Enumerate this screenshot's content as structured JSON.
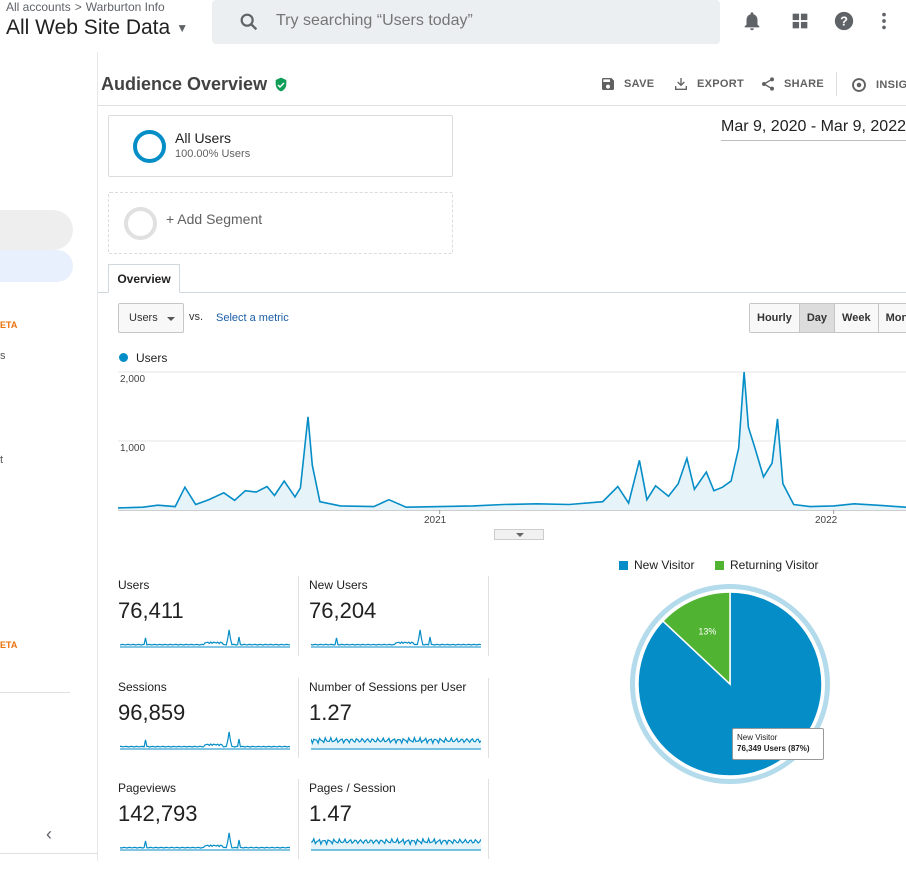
{
  "topbar": {
    "breadcrumb": [
      "All accounts",
      "Warburton Info"
    ],
    "breadcrumb_sep": ">",
    "property": "All Web Site Data",
    "search_placeholder": "Try searching “Users today”",
    "icons": [
      "bell-icon",
      "apps-grid-icon",
      "help-icon",
      "more-vert-icon"
    ]
  },
  "sidebar": {
    "beta1": "ETA",
    "frag1": "s",
    "frag2": "t",
    "beta2": "ETA"
  },
  "header": {
    "title": "Audience Overview",
    "actions": {
      "save": "SAVE",
      "export": "EXPORT",
      "share": "SHARE",
      "insights": "INSIGHTS"
    }
  },
  "segments": {
    "all_users": "All Users",
    "all_users_sub": "100.00% Users",
    "add_segment": "+ Add Segment"
  },
  "date_range": "Mar 9, 2020 - Mar 9, 2022",
  "tabs": {
    "overview": "Overview"
  },
  "controls": {
    "metric": "Users",
    "vs": "vs.",
    "select_metric": "Select a metric",
    "granularity": [
      "Hourly",
      "Day",
      "Week",
      "Month"
    ],
    "active_granularity": "Day"
  },
  "chart_data": {
    "type": "area",
    "series": [
      {
        "name": "Users",
        "color": "#058dc7"
      }
    ],
    "x_tick_labels": [
      "2021",
      "2022"
    ],
    "y_tick_labels": [
      "2,000",
      "1,000"
    ],
    "ylim": [
      0,
      2000
    ],
    "xlim": [
      "2020-03-09",
      "2022-03-09"
    ],
    "points": [
      [
        "2020-03-09",
        30
      ],
      [
        "2020-04-01",
        40
      ],
      [
        "2020-04-15",
        70
      ],
      [
        "2020-05-01",
        50
      ],
      [
        "2020-05-10",
        330
      ],
      [
        "2020-05-20",
        80
      ],
      [
        "2020-06-01",
        150
      ],
      [
        "2020-06-15",
        250
      ],
      [
        "2020-06-25",
        140
      ],
      [
        "2020-07-05",
        280
      ],
      [
        "2020-07-15",
        260
      ],
      [
        "2020-07-25",
        340
      ],
      [
        "2020-08-01",
        210
      ],
      [
        "2020-08-10",
        420
      ],
      [
        "2020-08-20",
        190
      ],
      [
        "2020-08-25",
        320
      ],
      [
        "2020-09-01",
        1350
      ],
      [
        "2020-09-05",
        650
      ],
      [
        "2020-09-12",
        120
      ],
      [
        "2020-10-01",
        60
      ],
      [
        "2020-11-01",
        50
      ],
      [
        "2020-11-15",
        150
      ],
      [
        "2020-12-01",
        40
      ],
      [
        "2021-01-01",
        50
      ],
      [
        "2021-02-01",
        60
      ],
      [
        "2021-03-01",
        80
      ],
      [
        "2021-04-01",
        90
      ],
      [
        "2021-05-01",
        80
      ],
      [
        "2021-06-01",
        120
      ],
      [
        "2021-06-15",
        340
      ],
      [
        "2021-06-25",
        100
      ],
      [
        "2021-07-05",
        720
      ],
      [
        "2021-07-12",
        150
      ],
      [
        "2021-07-20",
        350
      ],
      [
        "2021-08-01",
        200
      ],
      [
        "2021-08-10",
        380
      ],
      [
        "2021-08-18",
        750
      ],
      [
        "2021-08-25",
        300
      ],
      [
        "2021-09-05",
        550
      ],
      [
        "2021-09-12",
        280
      ],
      [
        "2021-09-20",
        330
      ],
      [
        "2021-09-28",
        420
      ],
      [
        "2021-10-05",
        900
      ],
      [
        "2021-10-10",
        2000
      ],
      [
        "2021-10-14",
        1200
      ],
      [
        "2021-10-20",
        900
      ],
      [
        "2021-10-28",
        480
      ],
      [
        "2021-11-05",
        680
      ],
      [
        "2021-11-10",
        1320
      ],
      [
        "2021-11-15",
        380
      ],
      [
        "2021-11-25",
        80
      ],
      [
        "2021-12-10",
        50
      ],
      [
        "2022-01-01",
        60
      ],
      [
        "2022-01-20",
        90
      ],
      [
        "2022-02-10",
        70
      ],
      [
        "2022-03-09",
        40
      ]
    ]
  },
  "tiles": [
    {
      "name": "Users",
      "value": "76,411"
    },
    {
      "name": "New Users",
      "value": "76,204"
    },
    {
      "name": "Sessions",
      "value": "96,859"
    },
    {
      "name": "Number of Sessions per User",
      "value": "1.27"
    },
    {
      "name": "Pageviews",
      "value": "142,793"
    },
    {
      "name": "Pages / Session",
      "value": "1.47"
    }
  ],
  "pie": {
    "type": "pie",
    "series": [
      {
        "name": "New Visitor",
        "percent": 87,
        "color": "#058dc7"
      },
      {
        "name": "Returning Visitor",
        "percent": 13,
        "color": "#50b432"
      }
    ],
    "slice_label": "13%",
    "tooltip_title": "New Visitor",
    "tooltip_value": "76,349 Users (87%)"
  }
}
